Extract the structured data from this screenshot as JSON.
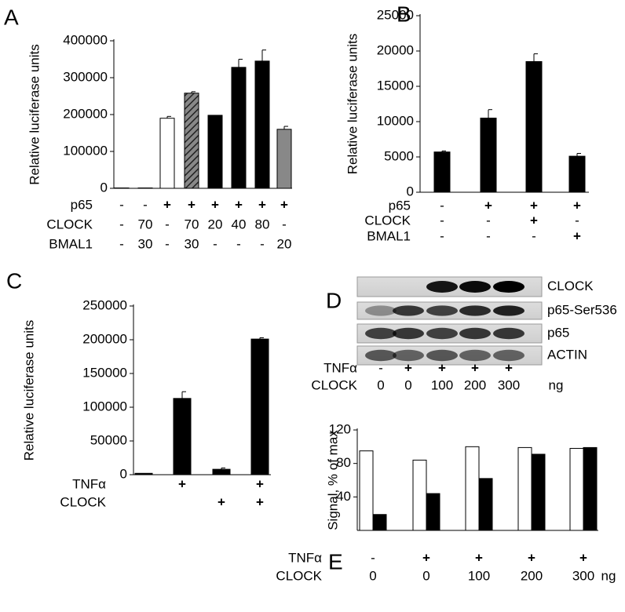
{
  "chart_data": [
    {
      "type": "bar",
      "panel": "A",
      "ylabel": "Relative luciferase units",
      "ylim": [
        0,
        400000
      ],
      "yticks": [
        0,
        100000,
        200000,
        300000,
        400000
      ],
      "values": [
        1000,
        1000,
        190000,
        258000,
        198000,
        328000,
        345000,
        160000
      ],
      "errors": [
        0,
        0,
        5000,
        4000,
        0,
        22000,
        30000,
        8000
      ],
      "colors": [
        "#000000",
        "#000000",
        "#ffffff",
        "#555555",
        "#000000",
        "#000000",
        "#000000",
        "#888888"
      ],
      "hatched": [
        false,
        false,
        false,
        true,
        false,
        false,
        false,
        false
      ],
      "conditions": [
        {
          "label": "p65",
          "values": [
            "-",
            "-",
            "+",
            "+",
            "+",
            "+",
            "+",
            "+"
          ]
        },
        {
          "label": "CLOCK",
          "values": [
            "-",
            "70",
            "-",
            "70",
            "20",
            "40",
            "80",
            "-"
          ]
        },
        {
          "label": "BMAL1",
          "values": [
            "-",
            "30",
            "-",
            "30",
            "-",
            "-",
            "-",
            "20"
          ]
        }
      ]
    },
    {
      "type": "bar",
      "panel": "B",
      "ylabel": "Relative luciferase units",
      "ylim": [
        0,
        25000
      ],
      "yticks": [
        0,
        5000,
        10000,
        15000,
        20000,
        25000
      ],
      "values": [
        5700,
        10500,
        18500,
        5100
      ],
      "errors": [
        150,
        1200,
        1100,
        400
      ],
      "colors": [
        "#000000",
        "#000000",
        "#000000",
        "#000000"
      ],
      "conditions": [
        {
          "label": "p65",
          "values": [
            "-",
            "+",
            "+",
            "+"
          ]
        },
        {
          "label": "CLOCK",
          "values": [
            "-",
            "-",
            "+",
            "-"
          ]
        },
        {
          "label": "BMAL1",
          "values": [
            "-",
            "-",
            "-",
            "+"
          ]
        }
      ]
    },
    {
      "type": "bar",
      "panel": "C",
      "ylabel": "Relative luciferase units",
      "ylim": [
        0,
        250000
      ],
      "yticks": [
        0,
        50000,
        100000,
        150000,
        200000,
        250000
      ],
      "values": [
        2000,
        113000,
        8000,
        201000
      ],
      "errors": [
        0,
        10000,
        2000,
        2000
      ],
      "colors": [
        "#000000",
        "#000000",
        "#000000",
        "#000000"
      ],
      "conditions": [
        {
          "label": "TNFα",
          "values": [
            null,
            "+",
            null,
            "+"
          ]
        },
        {
          "label": "CLOCK",
          "values": [
            null,
            null,
            "+",
            "+"
          ]
        }
      ]
    },
    {
      "type": "grouped-bar",
      "panel": "E",
      "ylabel": "Signal, % of max",
      "ylim": [
        0,
        120
      ],
      "yticks": [
        40,
        80,
        120
      ],
      "series": [
        {
          "color": "#ffffff",
          "values": [
            95,
            84,
            100,
            99,
            98
          ]
        },
        {
          "color": "#000000",
          "values": [
            19,
            44,
            62,
            91,
            99
          ]
        }
      ],
      "conditions": [
        {
          "label": "TNFα",
          "values": [
            "-",
            "+",
            "+",
            "+",
            "+"
          ]
        },
        {
          "label": "CLOCK",
          "values": [
            "0",
            "0",
            "100",
            "200",
            "300"
          ],
          "unit": "ng"
        }
      ]
    }
  ],
  "blot": {
    "panel": "D",
    "bands": [
      "CLOCK",
      "p65-Ser536",
      "p65",
      "ACTIN"
    ],
    "conditions": [
      {
        "label": "TNFα",
        "values": [
          "-",
          "+",
          "+",
          "+",
          "+"
        ]
      },
      {
        "label": "CLOCK",
        "values": [
          "0",
          "0",
          "100",
          "200",
          "300"
        ],
        "unit": "ng"
      }
    ]
  }
}
